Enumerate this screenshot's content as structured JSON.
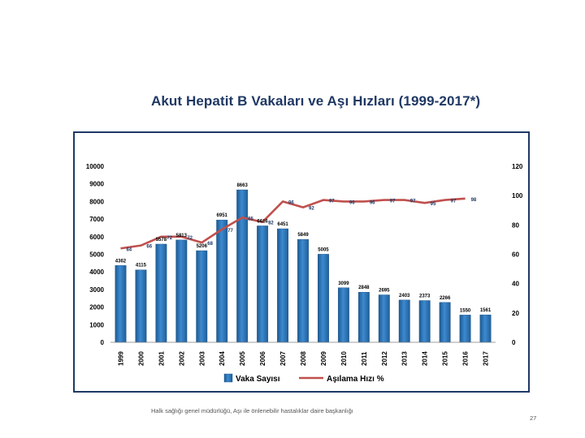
{
  "slide": {
    "title": "Akut Hepatit B Vakaları ve Aşı Hızları (1999-2017*)",
    "footer": "Halk sağlığı genel müdürlüğü, Aşı ile önlenebilir hastalıklar daire başkanlığı",
    "page_number": "27"
  },
  "chart_data": {
    "type": "bar",
    "title": "Akut Hepatit B Vakaları ve Aşı Hızları (1999-2017*)",
    "categories": [
      "1999",
      "2000",
      "2001",
      "2002",
      "2003",
      "2004",
      "2005",
      "2006",
      "2007",
      "2008",
      "2009",
      "2010",
      "2011",
      "2012",
      "2013",
      "2014",
      "2015",
      "2016",
      "2017"
    ],
    "series": [
      {
        "name": "Vaka Sayısı",
        "type": "bar",
        "axis": "left",
        "color": "#2e75b6",
        "values": [
          4362,
          4115,
          5578,
          5813,
          5206,
          6951,
          8663,
          6616,
          6451,
          5849,
          5005,
          3099,
          2848,
          2695,
          2403,
          2373,
          2266,
          1550,
          1561
        ],
        "labels": [
          "4362",
          "4115",
          "5578",
          "5813",
          "5206",
          "6951",
          "8663",
          "6616",
          "6451",
          "5849",
          "5005",
          "3099",
          "2848",
          "2695",
          "2403",
          "2373",
          "2266",
          "1550",
          "1561"
        ]
      },
      {
        "name": "Aşılama Hızı %",
        "type": "line",
        "axis": "right",
        "color": "#c0504d",
        "values": [
          64,
          66,
          72,
          72,
          68,
          77,
          85,
          82,
          96,
          92,
          97,
          96,
          96,
          97,
          97,
          95,
          97,
          98,
          null
        ],
        "labels": [
          "64",
          "66",
          "72",
          "72",
          "68",
          "77",
          "85",
          "82",
          "96",
          "92",
          "97",
          "96",
          "96",
          "97",
          "97",
          "95",
          "97",
          "98",
          ""
        ]
      }
    ],
    "y_left": {
      "min": 0,
      "max": 10000,
      "ticks": [
        0,
        1000,
        2000,
        3000,
        4000,
        5000,
        6000,
        7000,
        8000,
        9000,
        10000
      ]
    },
    "y_right": {
      "min": 0,
      "max": 120,
      "ticks": [
        0,
        20,
        40,
        60,
        80,
        100,
        120
      ]
    },
    "legend": {
      "position": "bottom",
      "entries": [
        "Vaka Sayısı",
        "Aşılama Hızı %"
      ]
    }
  }
}
